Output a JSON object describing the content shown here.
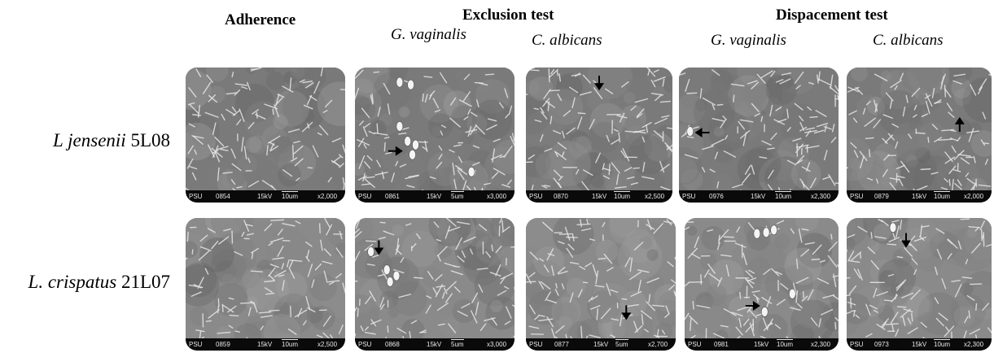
{
  "headers": {
    "adherence": "Adherence",
    "exclusion": "Exclusion test",
    "displacement": "Dispacement test",
    "exclusion_gv": "G. vaginalis",
    "exclusion_ca": "C. albicans",
    "displacement_gv": "G. vaginalis",
    "displacement_ca": "C. albicans"
  },
  "rows": [
    {
      "species": "L jensenii",
      "strain": "5L08"
    },
    {
      "species": "L. crispatus",
      "strain": "21L07"
    }
  ],
  "panels": {
    "r1c1": {
      "tag": "PSU",
      "id": "0854",
      "kv": "15kV",
      "scale": "10um",
      "mag": "x2,000"
    },
    "r1c2": {
      "tag": "PSU",
      "id": "0861",
      "kv": "15kV",
      "scale": "5um",
      "mag": "x3,000"
    },
    "r1c3": {
      "tag": "PSU",
      "id": "0870",
      "kv": "15kV",
      "scale": "10um",
      "mag": "x2,500"
    },
    "r1c4": {
      "tag": "PSU",
      "id": "0976",
      "kv": "15kV",
      "scale": "10um",
      "mag": "x2,300"
    },
    "r1c5": {
      "tag": "PSU",
      "id": "0879",
      "kv": "15kV",
      "scale": "10um",
      "mag": "x2,000"
    },
    "r2c1": {
      "tag": "PSU",
      "id": "0859",
      "kv": "15kV",
      "scale": "10um",
      "mag": "x2,500"
    },
    "r2c2": {
      "tag": "PSU",
      "id": "0868",
      "kv": "15kV",
      "scale": "5um",
      "mag": "x3,000"
    },
    "r2c3": {
      "tag": "PSU",
      "id": "0877",
      "kv": "15kV",
      "scale": "5um",
      "mag": "x2,700"
    },
    "r2c4": {
      "tag": "PSU",
      "id": "0981",
      "kv": "15kV",
      "scale": "10um",
      "mag": "x2,300"
    },
    "r2c5": {
      "tag": "PSU",
      "id": "0973",
      "kv": "15kV",
      "scale": "10um",
      "mag": "x2,300"
    }
  }
}
